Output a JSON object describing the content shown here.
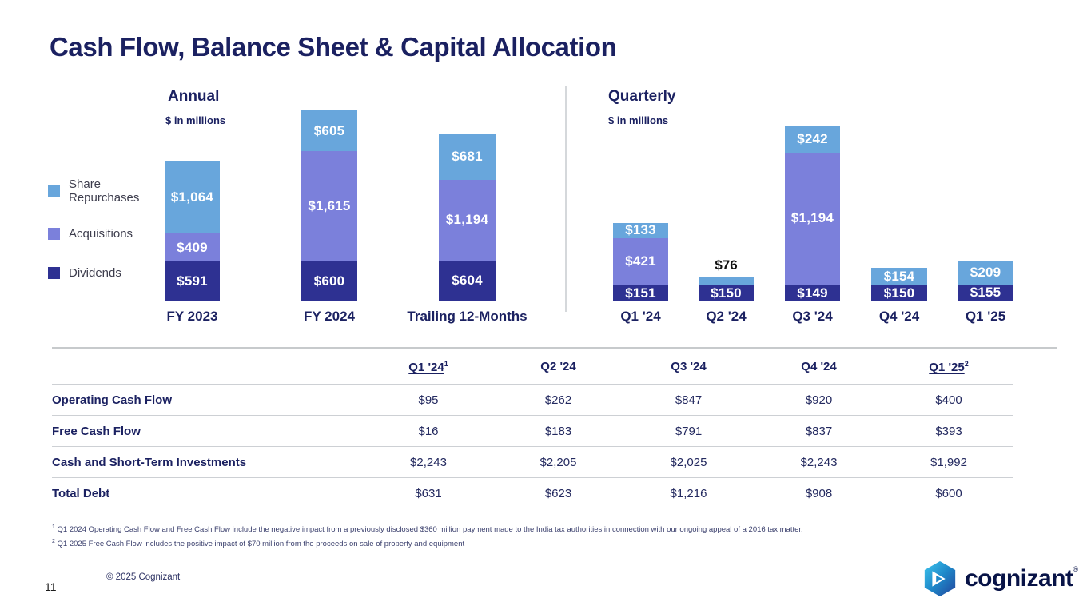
{
  "slide": {
    "title": "Cash Flow, Balance Sheet & Capital Allocation",
    "page_number": "11",
    "copyright": "© 2025 Cognizant",
    "logo_text": "cognizant",
    "logo_reg_mark": "®",
    "footnotes": [
      {
        "marker": "1",
        "text": "Q1 2024 Operating Cash Flow and Free Cash Flow include the negative impact from a previously disclosed $360 million payment made to the India tax authorities in connection with our ongoing appeal of a 2016 tax matter."
      },
      {
        "marker": "2",
        "text": "Q1 2025 Free Cash Flow includes the positive impact of $70 million from the proceeds on sale of property and equipment"
      }
    ]
  },
  "legend": {
    "items": [
      {
        "label": "Share Repurchases",
        "color": "#68a6dc"
      },
      {
        "label": "Acquisitions",
        "color": "#7b80db"
      },
      {
        "label": "Dividends",
        "color": "#2e3192"
      }
    ]
  },
  "chart_data": [
    {
      "type": "bar",
      "stacked": true,
      "title": "Annual",
      "subtitle": "$ in millions",
      "value_prefix": "$",
      "legend_position": "left",
      "axes_hidden": true,
      "categories": [
        "FY 2023",
        "FY 2024",
        "Trailing 12-Months"
      ],
      "series": [
        {
          "name": "Dividends",
          "color": "#2e3192",
          "values": [
            591,
            600,
            604
          ]
        },
        {
          "name": "Acquisitions",
          "color": "#7b80db",
          "values": [
            409,
            1615,
            1194
          ]
        },
        {
          "name": "Share Repurchases",
          "color": "#68a6dc",
          "values": [
            1064,
            605,
            681
          ]
        }
      ]
    },
    {
      "type": "bar",
      "stacked": true,
      "title": "Quarterly",
      "subtitle": "$ in millions",
      "value_prefix": "$",
      "axes_hidden": true,
      "categories": [
        "Q1 '24",
        "Q2 '24",
        "Q3 '24",
        "Q4 '24",
        "Q1 '25"
      ],
      "series": [
        {
          "name": "Dividends",
          "color": "#2e3192",
          "values": [
            151,
            150,
            149,
            150,
            155
          ]
        },
        {
          "name": "Acquisitions",
          "color": "#7b80db",
          "values": [
            421,
            0,
            1194,
            0,
            0
          ]
        },
        {
          "name": "Share Repurchases",
          "color": "#68a6dc",
          "values": [
            133,
            76,
            242,
            154,
            209
          ]
        }
      ]
    }
  ],
  "table": {
    "headers": [
      {
        "label": "Q1 '24",
        "sup": "1"
      },
      {
        "label": "Q2 '24",
        "sup": ""
      },
      {
        "label": "Q3 '24",
        "sup": ""
      },
      {
        "label": "Q4 '24",
        "sup": ""
      },
      {
        "label": "Q1 '25",
        "sup": "2"
      }
    ],
    "rows": [
      {
        "label": "Operating Cash Flow",
        "values": [
          "$95",
          "$262",
          "$847",
          "$920",
          "$400"
        ]
      },
      {
        "label": "Free Cash Flow",
        "values": [
          "$16",
          "$183",
          "$791",
          "$837",
          "$393"
        ]
      },
      {
        "label": "Cash and Short-Term Investments",
        "values": [
          "$2,243",
          "$2,205",
          "$2,025",
          "$2,243",
          "$1,992"
        ]
      },
      {
        "label": "Total Debt",
        "values": [
          "$631",
          "$623",
          "$1,216",
          "$908",
          "$600"
        ]
      }
    ]
  }
}
